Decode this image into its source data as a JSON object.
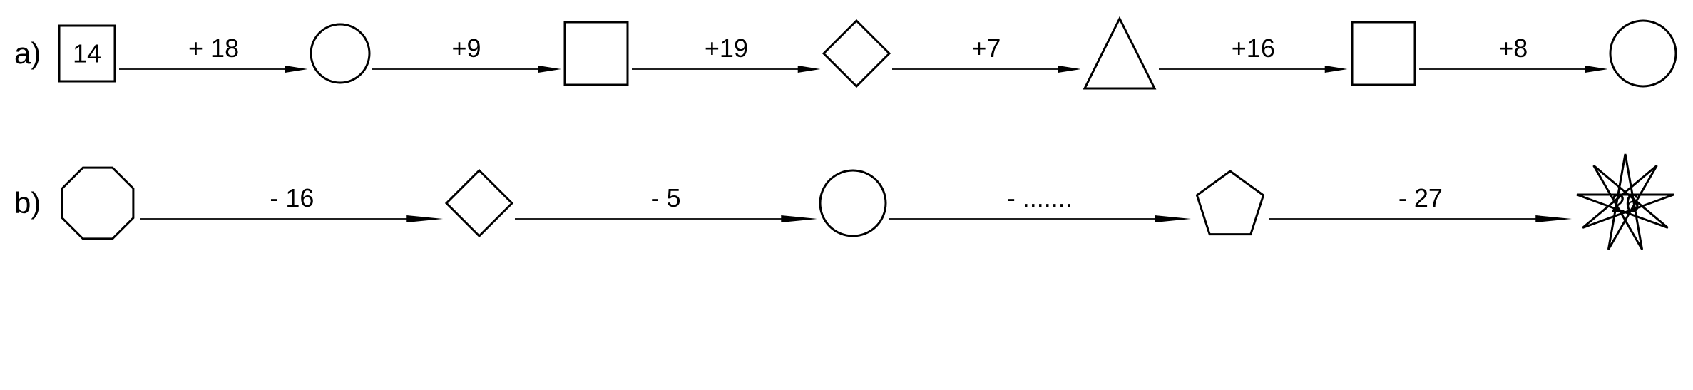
{
  "stroke_color": "#000000",
  "stroke_width": 3,
  "text_color": "#000000",
  "background_color": "#ffffff",
  "font_size_label": 42,
  "font_size_value": 36,
  "rows": [
    {
      "label": "a)",
      "nodes": [
        {
          "shape": "square",
          "value": "14",
          "size": 90
        },
        {
          "shape": "circle",
          "value": "",
          "size": 90
        },
        {
          "shape": "square",
          "value": "",
          "size": 100
        },
        {
          "shape": "diamond",
          "value": "",
          "size": 100
        },
        {
          "shape": "triangle",
          "value": "",
          "size": 110
        },
        {
          "shape": "square",
          "value": "",
          "size": 100
        },
        {
          "shape": "circle",
          "value": "",
          "size": 100
        }
      ],
      "arrows": [
        {
          "label": "+ 18"
        },
        {
          "label": "+9"
        },
        {
          "label": "+19"
        },
        {
          "label": "+7"
        },
        {
          "label": "+16"
        },
        {
          "label": "+8"
        }
      ]
    },
    {
      "label": "b)",
      "nodes": [
        {
          "shape": "octagon",
          "value": "",
          "size": 120
        },
        {
          "shape": "diamond",
          "value": "",
          "size": 100
        },
        {
          "shape": "circle",
          "value": "",
          "size": 100
        },
        {
          "shape": "pentagon",
          "value": "",
          "size": 110
        },
        {
          "shape": "star9",
          "value": "26",
          "size": 150
        }
      ],
      "arrows": [
        {
          "label": "- 16"
        },
        {
          "label": "- 5"
        },
        {
          "label": "- ......."
        },
        {
          "label": "- 27"
        }
      ]
    }
  ]
}
